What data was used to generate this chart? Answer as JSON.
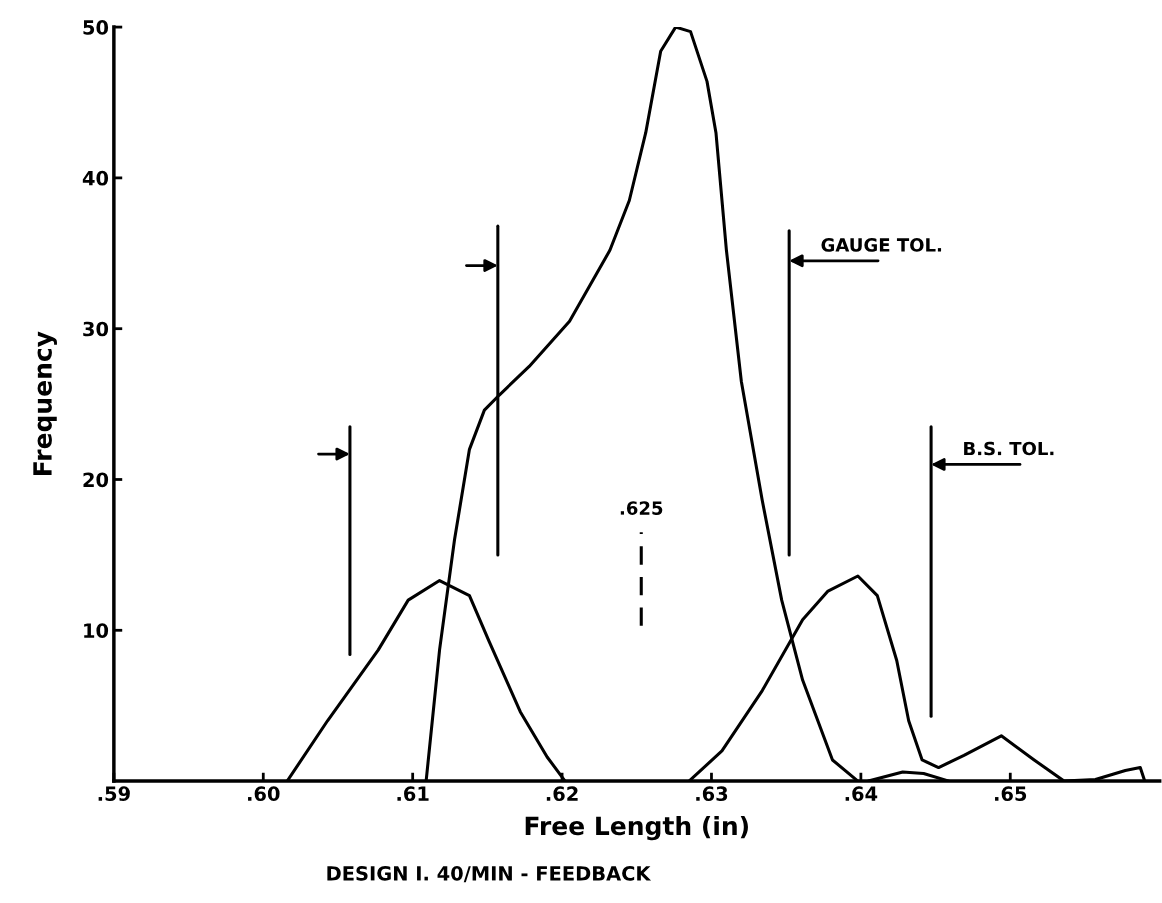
{
  "chart_data": {
    "type": "line",
    "xlabel": "Free Length (in)",
    "ylabel": "Frequency",
    "xlim": [
      0.59,
      0.66
    ],
    "ylim": [
      0,
      50
    ],
    "xticks": [
      {
        "value": 0.59,
        "label": ".59"
      },
      {
        "value": 0.6,
        "label": ".60"
      },
      {
        "value": 0.61,
        "label": ".61"
      },
      {
        "value": 0.62,
        "label": ".62"
      },
      {
        "value": 0.63,
        "label": ".63"
      },
      {
        "value": 0.64,
        "label": ".64"
      },
      {
        "value": 0.65,
        "label": ".65"
      }
    ],
    "yticks": [
      10,
      20,
      30,
      40,
      50
    ],
    "grid": false,
    "legend": false,
    "marker": "none",
    "line_style": "solid",
    "series": [
      {
        "color": "#000000",
        "x": [
          0.6016,
          0.6043,
          0.6077,
          0.6097,
          0.6118,
          0.6138,
          0.6151,
          0.6172,
          0.619,
          0.6202
        ],
        "values": [
          0,
          4,
          8.7,
          12,
          13.3,
          12.3,
          9.3,
          4.6,
          1.6,
          0
        ]
      },
      {
        "color": "#000000",
        "x": [
          0.6109,
          0.6118,
          0.6128,
          0.6138,
          0.6148,
          0.6158,
          0.6178,
          0.6205,
          0.6232,
          0.6245,
          0.6256,
          0.6266,
          0.6276,
          0.6286,
          0.6297,
          0.6303,
          0.631,
          0.632,
          0.6334,
          0.6347,
          0.6361,
          0.6381,
          0.6398
        ],
        "values": [
          0,
          8.7,
          16,
          22,
          24.6,
          25.6,
          27.5,
          30.5,
          35.2,
          38.5,
          43,
          48.4,
          50,
          49.7,
          46.4,
          43,
          35.2,
          26.5,
          18.6,
          12,
          6.7,
          1.4,
          0
        ]
      },
      {
        "color": "#000000",
        "x": [
          0.6285,
          0.6307,
          0.6334,
          0.6361,
          0.6378,
          0.6398,
          0.6411,
          0.6424,
          0.6432,
          0.6441,
          0.6452,
          0.6469,
          0.6494,
          0.6516,
          0.6536,
          0.6557,
          0.6577,
          0.6587,
          0.659
        ],
        "values": [
          0,
          2,
          6,
          10.7,
          12.6,
          13.6,
          12.3,
          8,
          4,
          1.4,
          0.9,
          1.7,
          3,
          1.4,
          0,
          0.1,
          0.7,
          0.9,
          0
        ]
      },
      {
        "color": "#000000",
        "x": [
          0.6405,
          0.6428,
          0.6442,
          0.6459
        ],
        "values": [
          0,
          0.6,
          0.5,
          0
        ]
      },
      {
        "color": "#000000",
        "x": [
          0.6058,
          0.6058
        ],
        "values": [
          8.4,
          23.5
        ]
      },
      {
        "color": "#000000",
        "x": [
          0.6157,
          0.6157
        ],
        "values": [
          15,
          36.8
        ]
      },
      {
        "color": "#000000",
        "x": [
          0.6352,
          0.6352
        ],
        "values": [
          15,
          36.5
        ]
      },
      {
        "color": "#000000",
        "x": [
          0.6447,
          0.6447
        ],
        "values": [
          4.3,
          23.5
        ]
      },
      {
        "color": "#000000",
        "x": [
          0.6253,
          0.6253
        ],
        "values": [
          10.3,
          16.5
        ],
        "line_style": "dashed",
        "name": ".625"
      }
    ],
    "annotations": [
      {
        "text": "GAUGE TOL.",
        "x": 0.6352,
        "y": 34.5
      },
      {
        "text": "B.S. TOL.",
        "x": 0.6447,
        "y": 21
      },
      "DESIGN I. 40/MIN - FEEDBACK"
    ]
  }
}
